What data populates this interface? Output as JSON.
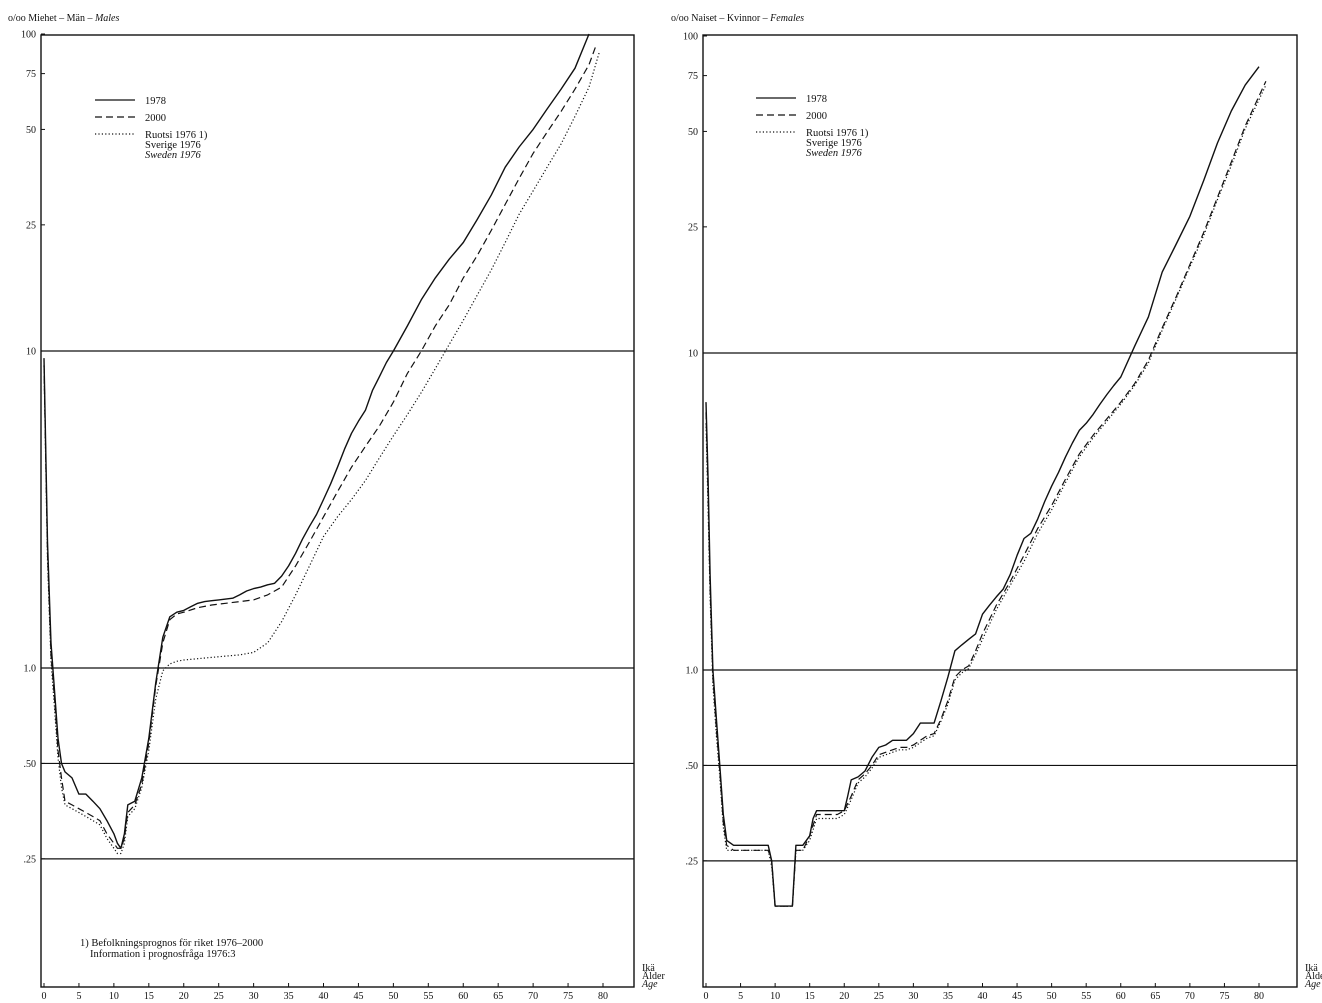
{
  "chart_data": [
    {
      "type": "line",
      "title": "o/oo Miehet – Män – Males",
      "title_parts": {
        "unit": "o/oo",
        "fi": "Miehet",
        "sv": "Män",
        "en": "Males"
      },
      "xlabel": [
        "Ikä",
        "Ålder",
        "Age"
      ],
      "ylabel": "o/oo",
      "y_scale": "log",
      "xlim": [
        0,
        80
      ],
      "ylim": [
        0.1,
        100
      ],
      "x_ticks": [
        0,
        5,
        10,
        15,
        20,
        25,
        30,
        35,
        40,
        45,
        50,
        55,
        60,
        65,
        70,
        75,
        80
      ],
      "y_ticks": [
        {
          "value": 100,
          "label": "100"
        },
        {
          "value": 75,
          "label": "75"
        },
        {
          "value": 50,
          "label": "50"
        },
        {
          "value": 25,
          "label": "25"
        },
        {
          "value": 10,
          "label": "10"
        },
        {
          "value": 1,
          "label": "1.0"
        },
        {
          "value": 0.5,
          "label": ".50"
        },
        {
          "value": 0.25,
          "label": ".25"
        }
      ],
      "gridlines": [
        10,
        1,
        0.5,
        0.25
      ],
      "legend": {
        "placement": "top-left",
        "entries": [
          {
            "label": [
              "1978"
            ],
            "style": "solid"
          },
          {
            "label": [
              "2000"
            ],
            "style": "dashed"
          },
          {
            "label": [
              "Ruotsi 1976 1)",
              "Sverige 1976",
              "Sweden 1976"
            ],
            "style": "dotted"
          }
        ]
      },
      "footnote": [
        "1) Befolkningsprognos för riket 1976–2000",
        "Information i prognosfråga 1976:3"
      ],
      "series": [
        {
          "style": "solid",
          "x": [
            0,
            0.5,
            1,
            1.5,
            2,
            2.5,
            3,
            4,
            5,
            6,
            7,
            8,
            9,
            10,
            10.5,
            11,
            11.5,
            12,
            13,
            14,
            15,
            16,
            17,
            18,
            19,
            20,
            21,
            22,
            23,
            24,
            25,
            26,
            27,
            28,
            29,
            30,
            31,
            32,
            33,
            34,
            35,
            36,
            37,
            38,
            39,
            40,
            41,
            42,
            43,
            44,
            45,
            46,
            47,
            48,
            49,
            50,
            52,
            54,
            56,
            58,
            60,
            62,
            64,
            66,
            68,
            70,
            72,
            74,
            76,
            78
          ],
          "y": [
            9.5,
            2.5,
            1.2,
            0.85,
            0.6,
            0.5,
            0.47,
            0.45,
            0.4,
            0.4,
            0.38,
            0.36,
            0.33,
            0.3,
            0.28,
            0.27,
            0.3,
            0.37,
            0.38,
            0.45,
            0.6,
            0.9,
            1.25,
            1.45,
            1.5,
            1.52,
            1.56,
            1.6,
            1.62,
            1.63,
            1.64,
            1.65,
            1.66,
            1.7,
            1.75,
            1.78,
            1.8,
            1.83,
            1.85,
            1.95,
            2.1,
            2.3,
            2.55,
            2.8,
            3.05,
            3.4,
            3.8,
            4.3,
            4.9,
            5.5,
            6.0,
            6.5,
            7.5,
            8.3,
            9.2,
            10.0,
            12.0,
            14.5,
            17.0,
            19.5,
            22.0,
            26.0,
            31.0,
            38.0,
            44.0,
            50.0,
            58.0,
            67.0,
            78.0,
            100.0
          ]
        },
        {
          "style": "dashed",
          "x": [
            0,
            0.5,
            1,
            1.5,
            2,
            2.5,
            3,
            4,
            5,
            6,
            7,
            8,
            9,
            10,
            10.5,
            11,
            11.5,
            12,
            13,
            14,
            15,
            16,
            17,
            18,
            19,
            20,
            22,
            24,
            26,
            28,
            30,
            32,
            34,
            36,
            38,
            40,
            42,
            44,
            46,
            48,
            50,
            52,
            54,
            56,
            58,
            60,
            62,
            64,
            66,
            68,
            70,
            72,
            74,
            76,
            78,
            79
          ],
          "y": [
            9.0,
            2.3,
            1.1,
            0.8,
            0.55,
            0.45,
            0.38,
            0.37,
            0.36,
            0.35,
            0.34,
            0.33,
            0.3,
            0.28,
            0.27,
            0.27,
            0.29,
            0.35,
            0.37,
            0.43,
            0.58,
            0.88,
            1.2,
            1.42,
            1.48,
            1.5,
            1.55,
            1.58,
            1.6,
            1.62,
            1.64,
            1.7,
            1.8,
            2.1,
            2.5,
            3.0,
            3.6,
            4.3,
            5.0,
            5.8,
            6.9,
            8.5,
            10.0,
            12.0,
            14.0,
            17.0,
            20.0,
            24.0,
            29.0,
            35.0,
            42.0,
            49.0,
            57.0,
            67.0,
            80.0,
            92.0
          ]
        },
        {
          "style": "dotted",
          "x": [
            0,
            0.5,
            1,
            1.5,
            2,
            2.5,
            3,
            4,
            5,
            6,
            7,
            8,
            9,
            10,
            10.5,
            11,
            11.5,
            12,
            13,
            14,
            15,
            16,
            17,
            18,
            19,
            20,
            22,
            24,
            26,
            28,
            30,
            32,
            34,
            36,
            38,
            40,
            42,
            44,
            46,
            48,
            50,
            52,
            54,
            56,
            58,
            60,
            62,
            64,
            66,
            68,
            70,
            72,
            74,
            76,
            78,
            79.5
          ],
          "y": [
            9.0,
            2.2,
            1.05,
            0.75,
            0.52,
            0.42,
            0.37,
            0.36,
            0.35,
            0.34,
            0.33,
            0.32,
            0.29,
            0.27,
            0.26,
            0.26,
            0.28,
            0.34,
            0.36,
            0.42,
            0.55,
            0.8,
            0.98,
            1.03,
            1.05,
            1.06,
            1.07,
            1.08,
            1.09,
            1.1,
            1.12,
            1.2,
            1.4,
            1.7,
            2.1,
            2.6,
            3.0,
            3.4,
            3.9,
            4.6,
            5.4,
            6.3,
            7.4,
            8.8,
            10.5,
            12.5,
            15.0,
            18.0,
            22.0,
            27.0,
            32.0,
            38.0,
            45.0,
            55.0,
            68.0,
            88.0
          ]
        }
      ]
    },
    {
      "type": "line",
      "title": "o/oo Naiset – Kvinnor – Females",
      "title_parts": {
        "unit": "o/oo",
        "fi": "Naiset",
        "sv": "Kvinnor",
        "en": "Females"
      },
      "xlabel": [
        "Ikä",
        "Ålder",
        "Age"
      ],
      "ylabel": "o/oo",
      "y_scale": "log",
      "xlim": [
        0,
        80
      ],
      "ylim": [
        0.1,
        100
      ],
      "x_ticks": [
        0,
        5,
        10,
        15,
        20,
        25,
        30,
        35,
        40,
        45,
        50,
        55,
        60,
        65,
        70,
        75,
        80
      ],
      "y_ticks": [
        {
          "value": 100,
          "label": "100"
        },
        {
          "value": 75,
          "label": "75"
        },
        {
          "value": 50,
          "label": "50"
        },
        {
          "value": 25,
          "label": "25"
        },
        {
          "value": 10,
          "label": "10"
        },
        {
          "value": 1,
          "label": "1.0"
        },
        {
          "value": 0.5,
          "label": ".50"
        },
        {
          "value": 0.25,
          "label": ".25"
        }
      ],
      "gridlines": [
        10,
        1,
        0.5,
        0.25
      ],
      "legend": {
        "placement": "top-left",
        "entries": [
          {
            "label": [
              "1978"
            ],
            "style": "solid"
          },
          {
            "label": [
              "2000"
            ],
            "style": "dashed"
          },
          {
            "label": [
              "Ruotsi 1976 1)",
              "Sverige 1976",
              "Sweden 1976"
            ],
            "style": "dotted"
          }
        ]
      },
      "series": [
        {
          "style": "solid",
          "x": [
            0,
            0.3,
            0.6,
            1,
            1.5,
            2,
            2.5,
            3,
            4,
            5,
            6,
            7,
            8,
            9,
            9.5,
            10,
            11,
            12,
            12.5,
            13,
            14,
            15,
            15.5,
            16,
            17,
            18,
            19,
            20,
            20.5,
            21,
            22,
            23,
            24,
            25,
            26,
            27,
            28,
            29,
            30,
            31,
            32,
            33,
            34,
            35,
            36,
            37,
            38,
            39,
            40,
            41,
            42,
            43,
            44,
            45,
            46,
            47,
            48,
            49,
            50,
            51,
            52,
            53,
            54,
            55,
            56,
            57,
            58,
            59,
            60,
            62,
            64,
            66,
            68,
            70,
            72,
            74,
            76,
            78,
            80
          ],
          "y": [
            7.0,
            4.0,
            2.0,
            1.0,
            0.7,
            0.5,
            0.35,
            0.29,
            0.28,
            0.28,
            0.28,
            0.28,
            0.28,
            0.28,
            0.25,
            0.18,
            0.18,
            0.18,
            0.18,
            0.28,
            0.28,
            0.3,
            0.34,
            0.36,
            0.36,
            0.36,
            0.36,
            0.36,
            0.4,
            0.45,
            0.46,
            0.48,
            0.53,
            0.57,
            0.58,
            0.6,
            0.6,
            0.6,
            0.63,
            0.68,
            0.68,
            0.68,
            0.8,
            0.95,
            1.15,
            1.2,
            1.25,
            1.3,
            1.5,
            1.6,
            1.7,
            1.8,
            2.0,
            2.3,
            2.6,
            2.7,
            3.0,
            3.4,
            3.8,
            4.2,
            4.7,
            5.2,
            5.7,
            6.0,
            6.4,
            6.9,
            7.4,
            7.9,
            8.4,
            10.5,
            13.0,
            18.0,
            22.0,
            27.0,
            35.0,
            46.0,
            58.0,
            70.0,
            80.0
          ]
        },
        {
          "style": "dashed",
          "x": [
            0,
            0.3,
            0.6,
            1,
            1.5,
            2,
            2.5,
            3,
            4,
            5,
            6,
            7,
            8,
            9,
            9.5,
            10,
            11,
            12,
            12.5,
            13,
            14,
            15,
            16,
            17,
            18,
            19,
            20,
            21,
            22,
            23,
            24,
            25,
            26,
            27,
            28,
            29,
            30,
            31,
            32,
            33,
            34,
            35,
            36,
            37,
            38,
            39,
            40,
            42,
            44,
            46,
            48,
            50,
            52,
            54,
            56,
            58,
            60,
            62,
            64,
            66,
            68,
            70,
            72,
            74,
            76,
            78,
            81
          ],
          "y": [
            6.5,
            3.5,
            1.8,
            0.95,
            0.65,
            0.48,
            0.33,
            0.28,
            0.27,
            0.27,
            0.27,
            0.27,
            0.27,
            0.27,
            0.25,
            0.18,
            0.18,
            0.18,
            0.18,
            0.27,
            0.27,
            0.3,
            0.35,
            0.35,
            0.35,
            0.35,
            0.36,
            0.4,
            0.45,
            0.47,
            0.5,
            0.54,
            0.55,
            0.56,
            0.57,
            0.57,
            0.58,
            0.6,
            0.62,
            0.63,
            0.7,
            0.8,
            0.95,
            1.0,
            1.03,
            1.15,
            1.3,
            1.6,
            1.9,
            2.3,
            2.8,
            3.3,
            4.0,
            4.8,
            5.5,
            6.2,
            7.0,
            8.0,
            9.5,
            12.0,
            15.0,
            19.0,
            24.0,
            31.0,
            40.0,
            52.0,
            72.0
          ]
        },
        {
          "style": "dotted",
          "x": [
            0,
            0.3,
            0.6,
            1,
            1.5,
            2,
            2.5,
            3,
            4,
            5,
            6,
            7,
            8,
            9,
            9.5,
            10,
            11,
            12,
            12.5,
            13,
            14,
            15,
            16,
            17,
            18,
            19,
            20,
            21,
            22,
            23,
            24,
            25,
            26,
            27,
            28,
            29,
            30,
            31,
            32,
            33,
            34,
            35,
            36,
            37,
            38,
            39,
            40,
            42,
            44,
            46,
            48,
            50,
            52,
            54,
            56,
            58,
            60,
            62,
            64,
            66,
            68,
            70,
            72,
            74,
            76,
            78,
            81
          ],
          "y": [
            6.0,
            3.2,
            1.7,
            0.9,
            0.62,
            0.46,
            0.32,
            0.27,
            0.27,
            0.27,
            0.27,
            0.27,
            0.27,
            0.27,
            0.24,
            0.18,
            0.18,
            0.18,
            0.18,
            0.27,
            0.27,
            0.29,
            0.34,
            0.34,
            0.34,
            0.34,
            0.35,
            0.39,
            0.44,
            0.46,
            0.49,
            0.53,
            0.54,
            0.55,
            0.56,
            0.56,
            0.57,
            0.59,
            0.61,
            0.62,
            0.69,
            0.78,
            0.93,
            0.98,
            1.01,
            1.12,
            1.25,
            1.55,
            1.85,
            2.2,
            2.7,
            3.2,
            3.9,
            4.7,
            5.4,
            6.1,
            6.9,
            7.9,
            9.3,
            11.8,
            14.8,
            18.7,
            23.5,
            30.5,
            39.0,
            51.0,
            70.0
          ]
        }
      ]
    }
  ]
}
